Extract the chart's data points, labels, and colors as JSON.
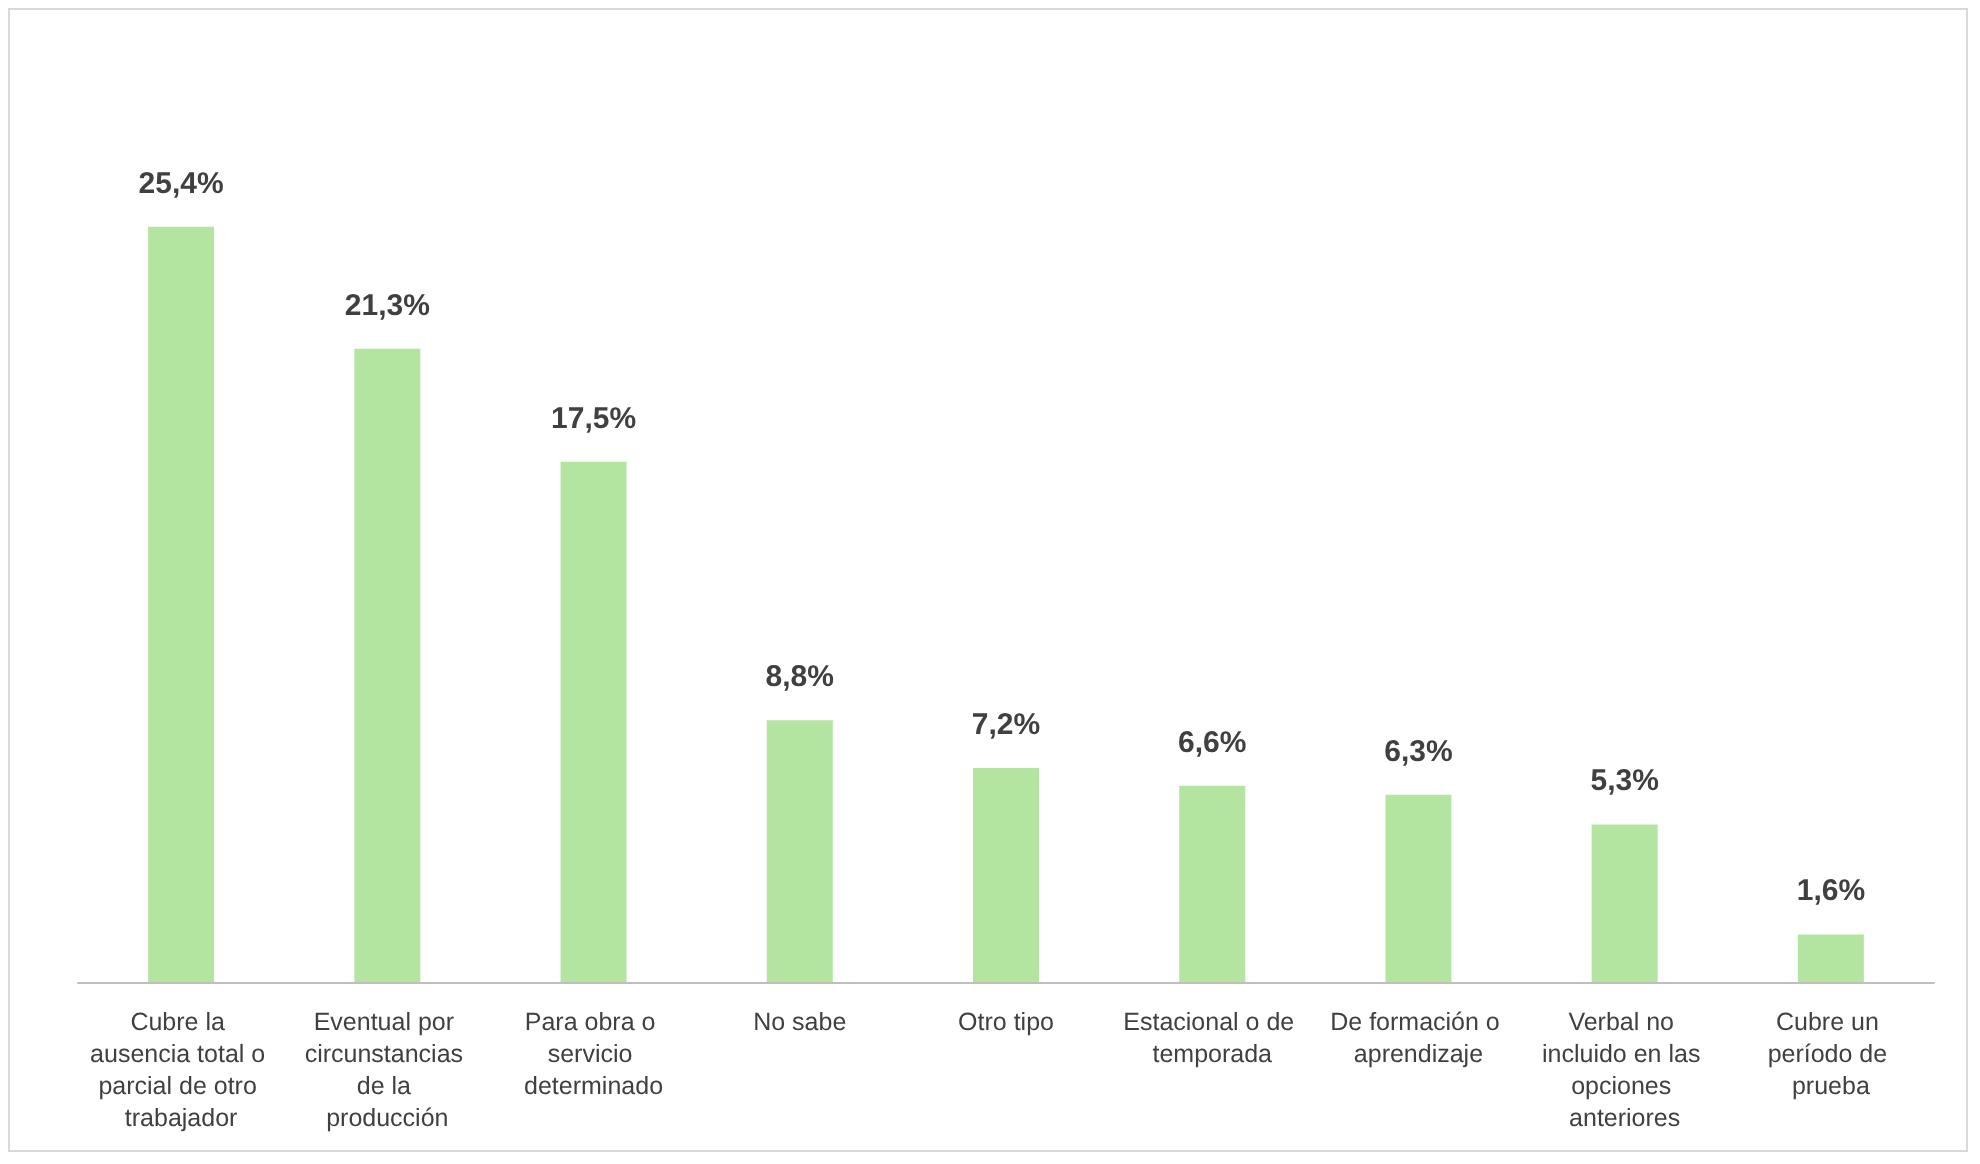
{
  "chart_data": {
    "type": "bar",
    "categories": [
      "Cubre la ausencia total o parcial de otro trabajador",
      "Eventual por circunstancias de la producción",
      "Para obra o servicio determinado",
      "No sabe",
      "Otro tipo",
      "Estacional o de temporada",
      "De formación o aprendizaje",
      "Verbal no incluido en las opciones anteriores",
      "Cubre un período de prueba"
    ],
    "values": [
      25.4,
      21.3,
      17.5,
      8.8,
      7.2,
      6.6,
      6.3,
      5.3,
      1.6
    ],
    "value_labels": [
      "25,4%",
      "21,3%",
      "17,5%",
      "8,8%",
      "7,2%",
      "6,6%",
      "6,3%",
      "5,3%",
      "1,6%"
    ],
    "color": "#b3e5a1"
  }
}
